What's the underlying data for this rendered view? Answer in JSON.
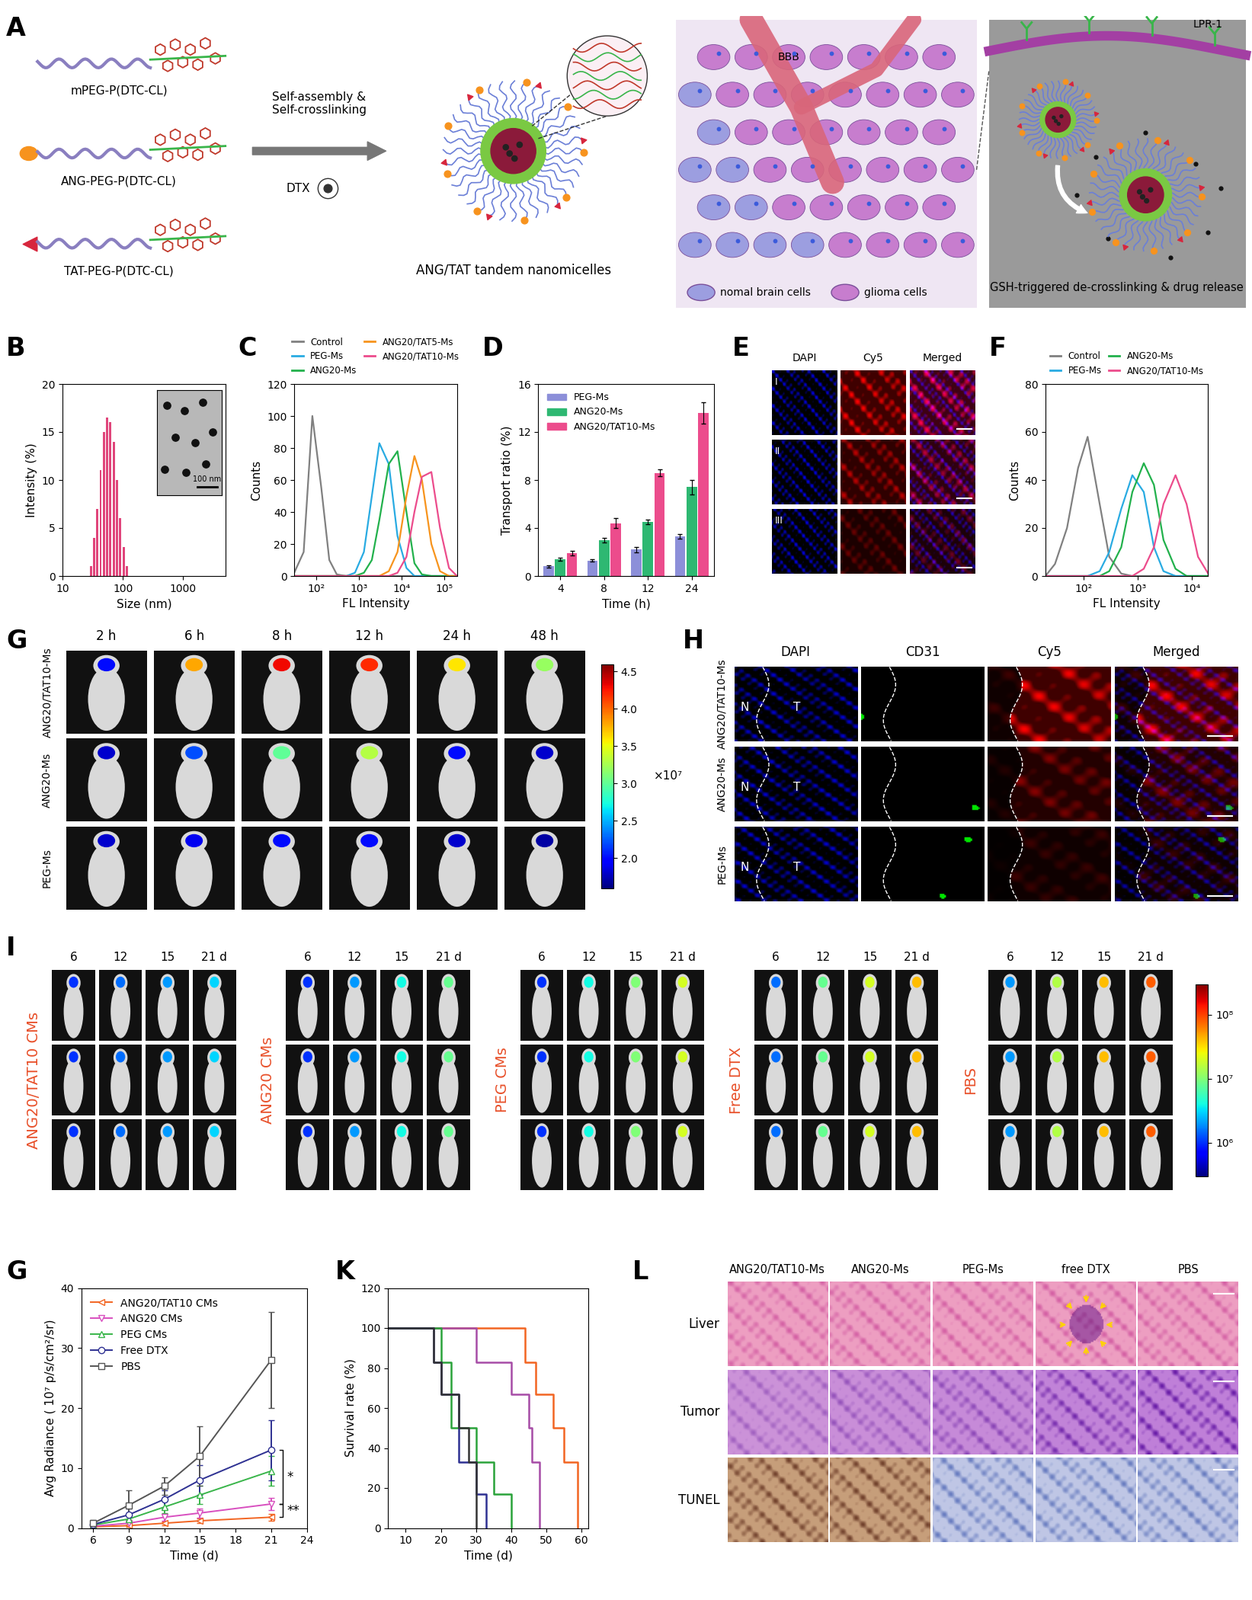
{
  "panel_labels": [
    "A",
    "B",
    "C",
    "D",
    "E",
    "F",
    "G",
    "H",
    "I",
    "G",
    "K",
    "L"
  ],
  "schematic": {
    "polymers": [
      "mPEG-P(DTC-CL)",
      "ANG-PEG-P(DTC-CL)",
      "TAT-PEG-P(DTC-CL)"
    ],
    "process": [
      "Self-assembly &",
      "Self-crosslinking"
    ],
    "drug": "DTX",
    "micelle": "ANG/TAT tandem nanomicelles",
    "barrier": "BBB",
    "receptor": "LPR-1",
    "cells": [
      "nomal brain cells",
      "glioma cells"
    ],
    "release": "GSH-triggered de-crosslinking & drug release"
  },
  "chart_data": [
    {
      "type": "histogram",
      "xlabel": "Size (nm)",
      "ylabel": "Intensity (%)",
      "bins": [
        28,
        32,
        36,
        41,
        46,
        52,
        59,
        67,
        76,
        86,
        98,
        111,
        126
      ],
      "counts": [
        1,
        4,
        7,
        11,
        15,
        16.5,
        16,
        14,
        10,
        6,
        3,
        1
      ],
      "color": "#e0457b",
      "log": "x",
      "xlim": [
        10,
        5000
      ],
      "xticks": [
        10,
        100,
        1000
      ],
      "ylim": [
        0,
        20
      ],
      "yticks": [
        0,
        5,
        10,
        15,
        20
      ],
      "annotations": [
        "100 nm"
      ]
    },
    {
      "type": "line",
      "xlabel": "FL Intensity",
      "ylabel": "Counts",
      "x": [
        30,
        50,
        80,
        130,
        200,
        300,
        500,
        800,
        1300,
        2000,
        3000,
        5000,
        8000,
        13000,
        20000,
        30000,
        50000,
        80000,
        130000,
        200000
      ],
      "series": [
        {
          "name": "Control",
          "color": "#808080",
          "values": [
            2,
            15,
            100,
            55,
            10,
            1,
            0,
            0,
            0,
            0,
            0,
            0,
            0,
            0,
            0,
            0,
            0,
            0,
            0,
            0
          ]
        },
        {
          "name": "PEG-Ms",
          "color": "#29abe2",
          "values": [
            0,
            0,
            0,
            0,
            0,
            0,
            0,
            2,
            15,
            50,
            83,
            70,
            25,
            5,
            0,
            0,
            0,
            0,
            0,
            0
          ]
        },
        {
          "name": "ANG20-Ms",
          "color": "#22b14c",
          "values": [
            0,
            0,
            0,
            0,
            0,
            0,
            0,
            0,
            2,
            10,
            35,
            70,
            78,
            40,
            8,
            1,
            0,
            0,
            0,
            0
          ]
        },
        {
          "name": "ANG20/TAT5-Ms",
          "color": "#f7941d",
          "values": [
            0,
            0,
            0,
            0,
            0,
            0,
            0,
            0,
            0,
            0,
            0,
            3,
            15,
            50,
            75,
            60,
            20,
            3,
            0,
            0
          ]
        },
        {
          "name": "ANG20/TAT10-Ms",
          "color": "#ec4c8c",
          "values": [
            0,
            0,
            0,
            0,
            0,
            0,
            0,
            0,
            0,
            0,
            0,
            0,
            2,
            12,
            40,
            62,
            65,
            30,
            5,
            0
          ]
        }
      ],
      "log": "x",
      "xlim": [
        30,
        200000
      ],
      "xticks": [
        {
          "value": 100,
          "label": "10²"
        },
        {
          "value": 1000,
          "label": "10³"
        },
        {
          "value": 10000,
          "label": "10⁴"
        },
        {
          "value": 100000,
          "label": "10⁵"
        }
      ],
      "ylim": [
        0,
        120
      ],
      "yticks": [
        0,
        20,
        40,
        60,
        80,
        100,
        120
      ],
      "legend": "top"
    },
    {
      "type": "bar",
      "xlabel": "Time (h)",
      "ylabel": "Transport ratio (%)",
      "categories": [
        "4",
        "8",
        "12",
        "24"
      ],
      "series": [
        {
          "name": "PEG-Ms",
          "color": "#8c8fd9",
          "values": [
            0.8,
            1.3,
            2.2,
            3.3
          ],
          "errors": [
            0.1,
            0.1,
            0.2,
            0.2
          ]
        },
        {
          "name": "ANG20-Ms",
          "color": "#2eb872",
          "values": [
            1.4,
            3.0,
            4.5,
            7.4
          ],
          "errors": [
            0.1,
            0.2,
            0.2,
            0.6
          ]
        },
        {
          "name": "ANG20/TAT10-Ms",
          "color": "#ec4c8c",
          "values": [
            1.9,
            4.4,
            8.6,
            13.6
          ],
          "errors": [
            0.2,
            0.4,
            0.3,
            0.9
          ]
        }
      ],
      "ylim": [
        0,
        16
      ],
      "yticks": [
        0,
        4,
        8,
        12,
        16
      ],
      "legend": "upper left"
    },
    {
      "type": "line",
      "xlabel": "FL Intensity",
      "ylabel": "Counts",
      "x": [
        20,
        30,
        50,
        80,
        120,
        200,
        300,
        500,
        800,
        1300,
        2000,
        3000,
        5000,
        8000,
        13000,
        20000
      ],
      "series": [
        {
          "name": "Control",
          "color": "#808080",
          "values": [
            0,
            5,
            20,
            45,
            58,
            30,
            8,
            1,
            0,
            0,
            0,
            0,
            0,
            0,
            0,
            0
          ]
        },
        {
          "name": "PEG-Ms",
          "color": "#29abe2",
          "values": [
            0,
            0,
            0,
            0,
            0,
            2,
            10,
            28,
            42,
            35,
            12,
            2,
            0,
            0,
            0,
            0
          ]
        },
        {
          "name": "ANG20-Ms",
          "color": "#22b14c",
          "values": [
            0,
            0,
            0,
            0,
            0,
            0,
            2,
            12,
            35,
            47,
            38,
            15,
            3,
            0,
            0,
            0
          ]
        },
        {
          "name": "ANG20/TAT10-Ms",
          "color": "#ec4c8c",
          "values": [
            0,
            0,
            0,
            0,
            0,
            0,
            0,
            0,
            0,
            3,
            12,
            30,
            42,
            30,
            8,
            1
          ]
        }
      ],
      "log": "x",
      "xlim": [
        20,
        20000
      ],
      "xticks": [
        {
          "value": 100,
          "label": "10²"
        },
        {
          "value": 1000,
          "label": "10³"
        },
        {
          "value": 10000,
          "label": "10⁴"
        }
      ],
      "ylim": [
        0,
        80
      ],
      "yticks": [
        0,
        20,
        40,
        60,
        80
      ],
      "legend": "top"
    },
    {
      "type": "line",
      "xlabel": "Time (d)",
      "ylabel": "Avg Radiance ( 10⁷ p/s/cm²/sr)",
      "x": [
        6,
        9,
        12,
        15,
        21
      ],
      "series": [
        {
          "name": "ANG20/TAT10 CMs",
          "color": "#f26522",
          "marker": "triangle_left",
          "values": [
            0.2,
            0.4,
            0.8,
            1.2,
            1.8
          ],
          "errors": [
            0.1,
            0.2,
            0.3,
            0.4,
            0.6
          ]
        },
        {
          "name": "ANG20 CMs",
          "color": "#d84fbf",
          "marker": "triangle_down",
          "values": [
            0.3,
            0.8,
            1.8,
            2.5,
            4.0
          ],
          "errors": [
            0.2,
            0.4,
            0.6,
            0.8,
            1.0
          ]
        },
        {
          "name": "PEG CMs",
          "color": "#39b54a",
          "marker": "triangle_up",
          "values": [
            0.5,
            1.5,
            3.5,
            5.5,
            9.5
          ],
          "errors": [
            0.3,
            0.6,
            1.0,
            1.5,
            2.5
          ]
        },
        {
          "name": "Free DTX",
          "color": "#2e3192",
          "marker": "circle",
          "values": [
            0.6,
            2.2,
            4.8,
            8.0,
            13.0
          ],
          "errors": [
            0.3,
            1.0,
            1.5,
            2.5,
            5.0
          ]
        },
        {
          "name": "PBS",
          "color": "#555555",
          "marker": "square",
          "values": [
            0.8,
            3.8,
            7.0,
            12.0,
            28.0
          ],
          "errors": [
            0.5,
            2.5,
            1.5,
            5.0,
            8.0
          ]
        }
      ],
      "xlim": [
        5,
        24
      ],
      "xticks": [
        6,
        9,
        12,
        15,
        18,
        21,
        24
      ],
      "ylim": [
        0,
        40
      ],
      "yticks": [
        0,
        10,
        20,
        30,
        40
      ],
      "legend": "upper left",
      "annotations": [
        "*",
        "**"
      ]
    },
    {
      "type": "step",
      "xlabel": "Time (d)",
      "ylabel": "Survival rate (%)",
      "series": [
        {
          "color": "#f26522",
          "x": [
            5,
            44,
            47,
            52,
            55,
            59
          ],
          "values": [
            100,
            83,
            67,
            50,
            33,
            0
          ]
        },
        {
          "color": "#a64ca6",
          "x": [
            5,
            30,
            40,
            45,
            46,
            48
          ],
          "values": [
            100,
            83,
            67,
            50,
            33,
            0
          ]
        },
        {
          "color": "#2aa33a",
          "x": [
            5,
            20,
            23,
            30,
            35,
            40
          ],
          "values": [
            100,
            83,
            50,
            33,
            17,
            0
          ]
        },
        {
          "color": "#2e3192",
          "x": [
            5,
            18,
            20,
            25,
            30,
            33
          ],
          "values": [
            100,
            83,
            67,
            33,
            17,
            0
          ]
        },
        {
          "color": "#333333",
          "x": [
            5,
            18,
            20,
            25,
            28,
            30
          ],
          "values": [
            100,
            83,
            67,
            50,
            33,
            0
          ]
        }
      ],
      "xlim": [
        5,
        62
      ],
      "xticks": [
        10,
        20,
        30,
        40,
        50,
        60
      ],
      "ylim": [
        0,
        120
      ],
      "yticks": [
        0,
        20,
        40,
        60,
        80,
        100,
        120
      ]
    }
  ],
  "E": {
    "columns": [
      "DAPI",
      "Cy5",
      "Merged"
    ],
    "rows": [
      "I",
      "II",
      "III"
    ]
  },
  "G": {
    "times": [
      "2 h",
      "6 h",
      "8 h",
      "12 h",
      "24 h",
      "48 h"
    ],
    "groups": [
      "ANG20/TAT10-Ms",
      "ANG20-Ms",
      "PEG-Ms"
    ],
    "intensity": [
      [
        2.0,
        3.8,
        4.3,
        4.2,
        3.6,
        3.2
      ],
      [
        1.8,
        2.2,
        3.0,
        3.3,
        2.0,
        1.8
      ],
      [
        1.8,
        1.9,
        2.0,
        2.0,
        1.8,
        1.7
      ]
    ],
    "colorbar": {
      "range": [
        1.6,
        4.6
      ],
      "ticks": [
        2.0,
        2.5,
        3.0,
        3.5,
        4.0,
        4.5
      ],
      "label": "×10⁷"
    }
  },
  "H": {
    "columns": [
      "DAPI",
      "CD31",
      "Cy5",
      "Merged"
    ],
    "groups": [
      "ANG20/TAT10-Ms",
      "ANG20-Ms",
      "PEG-Ms"
    ],
    "regions": [
      "N",
      "T"
    ]
  },
  "I": {
    "groups": [
      "ANG20/TAT10 CMs",
      "ANG20 CMs",
      "PEG CMs",
      "Free DTX",
      "PBS"
    ],
    "days": [
      "6",
      "12",
      "15",
      "21 d"
    ],
    "radiance": [
      [
        1000000,
        1500000,
        2000000,
        3000000
      ],
      [
        1000000,
        2000000,
        4000000,
        8000000
      ],
      [
        1000000,
        4000000,
        10000000,
        20000000
      ],
      [
        1500000,
        8000000,
        20000000,
        40000000
      ],
      [
        2000000,
        15000000,
        40000000,
        80000000
      ]
    ],
    "colorbar": {
      "range": [
        300000,
        300000000
      ],
      "ticks": [
        {
          "value": 1000000,
          "label": "10⁶"
        },
        {
          "value": 10000000,
          "label": "10⁷"
        },
        {
          "value": 100000000,
          "label": "10⁸"
        }
      ]
    }
  },
  "L": {
    "columns": [
      "ANG20/TAT10-Ms",
      "ANG20-Ms",
      "PEG-Ms",
      "free DTX",
      "PBS"
    ],
    "rows": [
      "Liver",
      "Tumor",
      "TUNEL"
    ]
  }
}
